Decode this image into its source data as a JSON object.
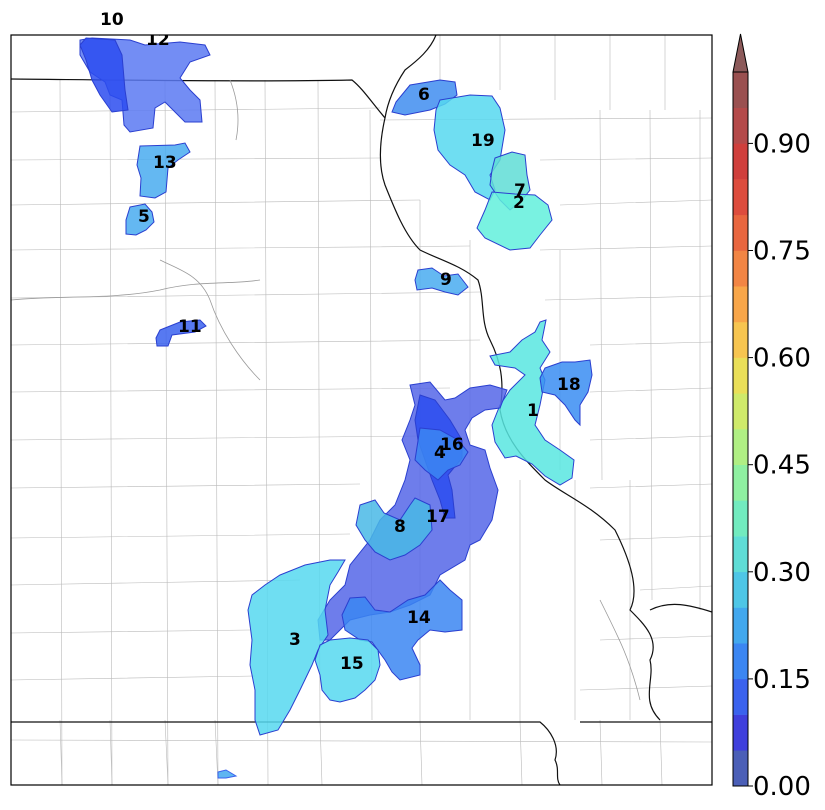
{
  "colorbar": {
    "ticks": [
      "0.00",
      "0.15",
      "0.30",
      "0.45",
      "0.60",
      "0.75",
      "0.90"
    ],
    "levels": [
      "#4b5fb7",
      "#3f3fdc",
      "#3a62ee",
      "#3b86f2",
      "#42a8ee",
      "#4ec6e6",
      "#5fddd6",
      "#72ebbf",
      "#8ff0a1",
      "#b0ef84",
      "#cfea6a",
      "#eadf58",
      "#f7c550",
      "#f8a649",
      "#f28544",
      "#e8663f",
      "#dd4c3d",
      "#cf3f3c",
      "#b44a4a",
      "#9a5050"
    ],
    "extend": "max"
  },
  "regions": [
    {
      "id": "10",
      "label": "10",
      "color": "#2b4cf0"
    },
    {
      "id": "12",
      "label": "12",
      "color": "#5a79f2"
    },
    {
      "id": "13",
      "label": "13",
      "color": "#49acf0"
    },
    {
      "id": "5",
      "label": "5",
      "color": "#49acf0"
    },
    {
      "id": "11",
      "label": "11",
      "color": "#3a62ee"
    },
    {
      "id": "6",
      "label": "6",
      "color": "#3f8df0"
    },
    {
      "id": "19",
      "label": "19",
      "color": "#56d8f0"
    },
    {
      "id": "7",
      "label": "7",
      "color": "#5fddd6"
    },
    {
      "id": "2",
      "label": "2",
      "color": "#62f0dc"
    },
    {
      "id": "9",
      "label": "9",
      "color": "#49acf0"
    },
    {
      "id": "1",
      "label": "1",
      "color": "#58e6e0"
    },
    {
      "id": "18",
      "label": "18",
      "color": "#3a8df2"
    },
    {
      "id": "16",
      "label": "16",
      "color": "#2b4cf0"
    },
    {
      "id": "4",
      "label": "4",
      "color": "#3b86f2"
    },
    {
      "id": "17",
      "label": "17",
      "color": "#5566e8"
    },
    {
      "id": "8",
      "label": "8",
      "color": "#49b8e6"
    },
    {
      "id": "3",
      "label": "3",
      "color": "#56d8f0"
    },
    {
      "id": "14",
      "label": "14",
      "color": "#3b86f2"
    },
    {
      "id": "15",
      "label": "15",
      "color": "#56d8f0"
    }
  ]
}
